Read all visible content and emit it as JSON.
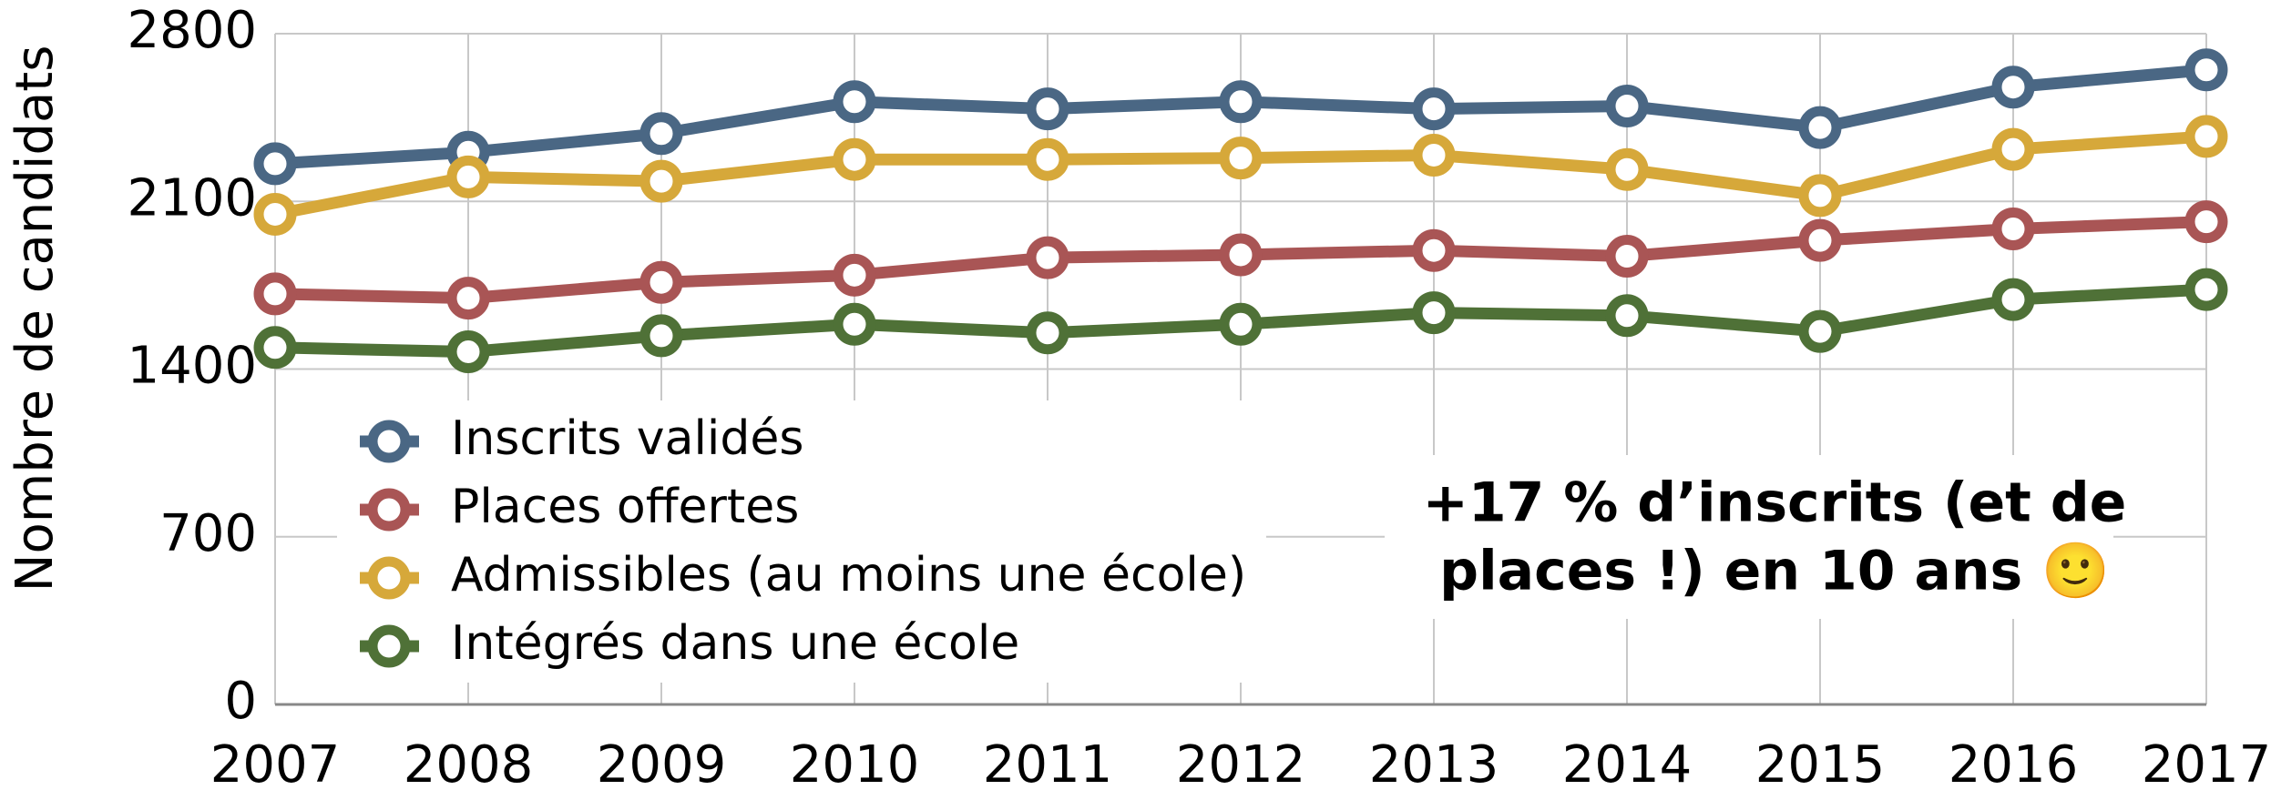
{
  "chart_data": {
    "type": "line",
    "y_label": "Nombre de candidats",
    "categories": [
      "2007",
      "2008",
      "2009",
      "2010",
      "2011",
      "2012",
      "2013",
      "2014",
      "2015",
      "2016",
      "2017"
    ],
    "series": [
      {
        "name": "Inscrits validés",
        "color": "#4a6784",
        "values": [
          2257,
          2305,
          2383,
          2516,
          2486,
          2516,
          2486,
          2498,
          2408,
          2577,
          2649
        ]
      },
      {
        "name": "Places offertes",
        "color": "#a95555",
        "values": [
          1714,
          1696,
          1762,
          1792,
          1865,
          1877,
          1895,
          1871,
          1937,
          1985,
          2015
        ]
      },
      {
        "name": "Admissibles (au moins une école)",
        "color": "#d6a83a",
        "values": [
          2046,
          2202,
          2184,
          2275,
          2275,
          2281,
          2293,
          2233,
          2124,
          2317,
          2371
        ]
      },
      {
        "name": "Intégrés dans une école",
        "color": "#4f7137",
        "values": [
          1490,
          1472,
          1539,
          1587,
          1551,
          1587,
          1635,
          1623,
          1557,
          1690,
          1732
        ]
      }
    ],
    "ylim": [
      0,
      2800
    ],
    "yticks": [
      0,
      700,
      1400,
      2100,
      2800
    ],
    "grid": true,
    "legend": "lower left",
    "annotation": [
      "+17 % d’inscrits (et de",
      "places !) en 10 ans 🙂"
    ]
  }
}
